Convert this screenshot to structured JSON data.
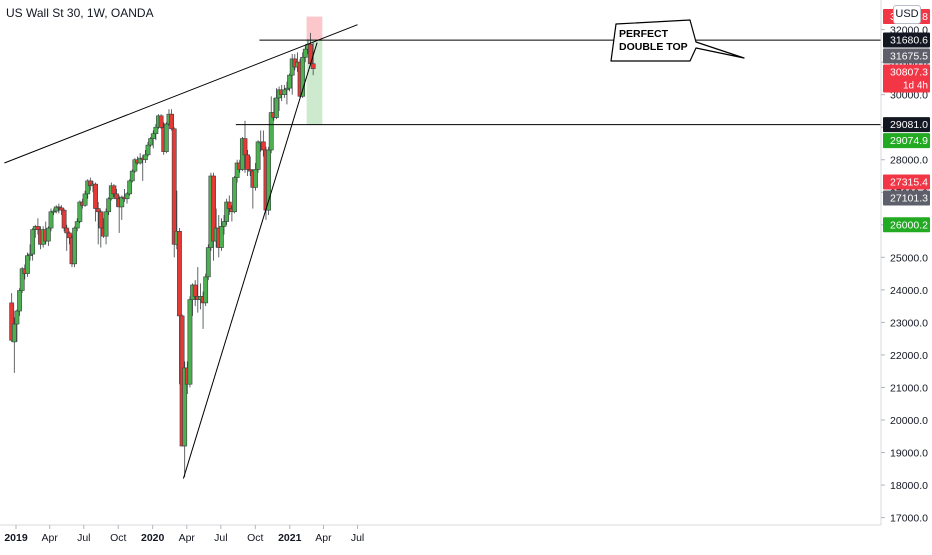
{
  "header": {
    "title": "US Wall St 30, 1W, OANDA"
  },
  "currency": "USD",
  "annotation": {
    "line1": "PERFECT",
    "line2": "DOUBLE TOP"
  },
  "chart_data": {
    "type": "candlestick",
    "title": "US Wall St 30, 1W, OANDA",
    "ylim": [
      17000,
      32750
    ],
    "y_ticks": [
      17000,
      18000,
      19000,
      20000,
      21000,
      22000,
      23000,
      24000,
      25000,
      26000,
      27000,
      28000,
      29000,
      30000,
      31000,
      32000
    ],
    "y_tick_labels": [
      "17000.0",
      "18000.0",
      "19000.0",
      "20000.0",
      "21000.0",
      "22000.0",
      "23000.0",
      "24000.0",
      "25000.0",
      "26000.0",
      "27000.0",
      "28000.0",
      "29000.0",
      "30000.0",
      "31000.0",
      "32000.0"
    ],
    "x_ticks": [
      "2019",
      "Apr",
      "Jul",
      "Oct",
      "2020",
      "Apr",
      "Jul",
      "Oct",
      "2021",
      "Apr",
      "Jul"
    ],
    "x_tick_bold": [
      true,
      false,
      false,
      false,
      true,
      false,
      false,
      false,
      true,
      false,
      false
    ],
    "x_range": [
      "2018-12",
      "2021-07"
    ],
    "colors": {
      "up": "#4caf50",
      "down": "#e53935",
      "line": "#000000"
    },
    "price_labels": [
      {
        "text": "32400.8",
        "value": 32400.8,
        "bg": "#f23645",
        "fg": "#ffffff"
      },
      {
        "text": "31680.6",
        "value": 31680.6,
        "bg": "#131722",
        "fg": "#ffffff"
      },
      {
        "text": "31675.5",
        "value": 31675.5,
        "bg": "#5d606b",
        "fg": "#ffffff"
      },
      {
        "text": "30807.3",
        "sub": "1d 4h",
        "value": 30807.3,
        "bg": "#f23645",
        "fg": "#ffffff"
      },
      {
        "text": "29081.0",
        "value": 29081.0,
        "bg": "#131722",
        "fg": "#ffffff"
      },
      {
        "text": "29074.9",
        "value": 29074.9,
        "bg": "#22ab22",
        "fg": "#ffffff"
      },
      {
        "text": "27315.4",
        "value": 27315.4,
        "bg": "#f23645",
        "fg": "#ffffff"
      },
      {
        "text": "27101.3",
        "value": 27101.3,
        "bg": "#5d606b",
        "fg": "#ffffff"
      },
      {
        "text": "26000.2",
        "value": 26000.2,
        "bg": "#22ab22",
        "fg": "#ffffff"
      }
    ],
    "horizontal_levels": [
      31675.5,
      29081.0
    ],
    "position_box": {
      "entry": 31675.5,
      "stop": 32400.8,
      "target": 29081.0
    },
    "trendlines": [
      {
        "name": "upper-resistance",
        "from": [
          "2018-12",
          27900
        ],
        "to": [
          "2021-07",
          32150
        ]
      },
      {
        "name": "rising-support",
        "from": [
          "2020-03-23",
          18200
        ],
        "to": [
          "2021-03-15",
          31600
        ]
      }
    ],
    "candles": [
      {
        "d": "2018-12-17",
        "o": 23600,
        "h": 23900,
        "l": 22400,
        "c": 22450
      },
      {
        "d": "2018-12-24",
        "o": 22400,
        "h": 23150,
        "l": 21450,
        "c": 22950
      },
      {
        "d": "2018-12-31",
        "o": 22950,
        "h": 23400,
        "l": 22400,
        "c": 23350
      },
      {
        "d": "2019-01-07",
        "o": 23350,
        "h": 24050,
        "l": 23200,
        "c": 23980
      },
      {
        "d": "2019-01-14",
        "o": 23980,
        "h": 24700,
        "l": 23900,
        "c": 24650
      },
      {
        "d": "2019-01-21",
        "o": 24650,
        "h": 24780,
        "l": 24320,
        "c": 24500
      },
      {
        "d": "2019-01-28",
        "o": 24500,
        "h": 25150,
        "l": 24400,
        "c": 25050
      },
      {
        "d": "2019-02-04",
        "o": 25050,
        "h": 25400,
        "l": 24900,
        "c": 25100
      },
      {
        "d": "2019-02-11",
        "o": 25100,
        "h": 25900,
        "l": 24900,
        "c": 25850
      },
      {
        "d": "2019-02-18",
        "o": 25850,
        "h": 26000,
        "l": 25600,
        "c": 25950
      },
      {
        "d": "2019-02-25",
        "o": 25950,
        "h": 26200,
        "l": 25700,
        "c": 25850
      },
      {
        "d": "2019-03-04",
        "o": 25850,
        "h": 25950,
        "l": 25250,
        "c": 25400
      },
      {
        "d": "2019-03-11",
        "o": 25400,
        "h": 25950,
        "l": 25300,
        "c": 25850
      },
      {
        "d": "2019-03-18",
        "o": 25850,
        "h": 26100,
        "l": 25400,
        "c": 25500
      },
      {
        "d": "2019-03-25",
        "o": 25500,
        "h": 25950,
        "l": 25350,
        "c": 25900
      },
      {
        "d": "2019-04-01",
        "o": 25900,
        "h": 26500,
        "l": 25800,
        "c": 26400
      },
      {
        "d": "2019-04-08",
        "o": 26400,
        "h": 26500,
        "l": 26300,
        "c": 26420
      },
      {
        "d": "2019-04-15",
        "o": 26420,
        "h": 26600,
        "l": 26350,
        "c": 26550
      },
      {
        "d": "2019-04-22",
        "o": 26550,
        "h": 26650,
        "l": 26350,
        "c": 26520
      },
      {
        "d": "2019-04-29",
        "o": 26520,
        "h": 26600,
        "l": 26300,
        "c": 26450
      },
      {
        "d": "2019-05-06",
        "o": 26450,
        "h": 26500,
        "l": 25800,
        "c": 25900
      },
      {
        "d": "2019-05-13",
        "o": 25900,
        "h": 26000,
        "l": 25200,
        "c": 25750
      },
      {
        "d": "2019-05-20",
        "o": 25750,
        "h": 25800,
        "l": 25400,
        "c": 25600
      },
      {
        "d": "2019-05-27",
        "o": 25600,
        "h": 25700,
        "l": 24700,
        "c": 24800
      },
      {
        "d": "2019-06-03",
        "o": 24800,
        "h": 25950,
        "l": 24700,
        "c": 25900
      },
      {
        "d": "2019-06-10",
        "o": 25900,
        "h": 26200,
        "l": 25800,
        "c": 26100
      },
      {
        "d": "2019-06-17",
        "o": 26100,
        "h": 26750,
        "l": 26050,
        "c": 26700
      },
      {
        "d": "2019-06-24",
        "o": 26700,
        "h": 26800,
        "l": 26500,
        "c": 26600
      },
      {
        "d": "2019-07-01",
        "o": 26600,
        "h": 27050,
        "l": 26550,
        "c": 26950
      },
      {
        "d": "2019-07-08",
        "o": 26950,
        "h": 27400,
        "l": 26800,
        "c": 27350
      },
      {
        "d": "2019-07-15",
        "o": 27350,
        "h": 27450,
        "l": 27050,
        "c": 27200
      },
      {
        "d": "2019-07-22",
        "o": 27200,
        "h": 27350,
        "l": 27000,
        "c": 27250
      },
      {
        "d": "2019-07-29",
        "o": 27250,
        "h": 27300,
        "l": 26100,
        "c": 26500
      },
      {
        "d": "2019-08-05",
        "o": 26500,
        "h": 26700,
        "l": 25400,
        "c": 26400
      },
      {
        "d": "2019-08-12",
        "o": 26400,
        "h": 26450,
        "l": 25300,
        "c": 25900
      },
      {
        "d": "2019-08-19",
        "o": 25900,
        "h": 26200,
        "l": 25600,
        "c": 25650
      },
      {
        "d": "2019-08-26",
        "o": 25650,
        "h": 26500,
        "l": 25400,
        "c": 26400
      },
      {
        "d": "2019-09-02",
        "o": 26400,
        "h": 26850,
        "l": 26300,
        "c": 26800
      },
      {
        "d": "2019-09-09",
        "o": 26800,
        "h": 27300,
        "l": 26750,
        "c": 27200
      },
      {
        "d": "2019-09-16",
        "o": 27200,
        "h": 27250,
        "l": 26850,
        "c": 26950
      },
      {
        "d": "2019-09-23",
        "o": 26950,
        "h": 27100,
        "l": 26550,
        "c": 26800
      },
      {
        "d": "2019-09-30",
        "o": 26800,
        "h": 26900,
        "l": 25750,
        "c": 26550
      },
      {
        "d": "2019-10-07",
        "o": 26550,
        "h": 26900,
        "l": 26150,
        "c": 26850
      },
      {
        "d": "2019-10-14",
        "o": 26850,
        "h": 27100,
        "l": 26700,
        "c": 26800
      },
      {
        "d": "2019-10-21",
        "o": 26800,
        "h": 27000,
        "l": 26650,
        "c": 26950
      },
      {
        "d": "2019-10-28",
        "o": 26950,
        "h": 27400,
        "l": 26900,
        "c": 27350
      },
      {
        "d": "2019-11-04",
        "o": 27350,
        "h": 27700,
        "l": 27300,
        "c": 27650
      },
      {
        "d": "2019-11-11",
        "o": 27650,
        "h": 28050,
        "l": 27600,
        "c": 28000
      },
      {
        "d": "2019-11-18",
        "o": 28000,
        "h": 28100,
        "l": 27850,
        "c": 27900
      },
      {
        "d": "2019-11-25",
        "o": 27900,
        "h": 28200,
        "l": 27850,
        "c": 28050
      },
      {
        "d": "2019-12-02",
        "o": 28050,
        "h": 28150,
        "l": 27350,
        "c": 28000
      },
      {
        "d": "2019-12-09",
        "o": 28000,
        "h": 28300,
        "l": 27900,
        "c": 28150
      },
      {
        "d": "2019-12-16",
        "o": 28150,
        "h": 28550,
        "l": 28100,
        "c": 28450
      },
      {
        "d": "2019-12-23",
        "o": 28450,
        "h": 28700,
        "l": 28400,
        "c": 28650
      },
      {
        "d": "2019-12-30",
        "o": 28650,
        "h": 28900,
        "l": 28350,
        "c": 28800
      },
      {
        "d": "2020-01-06",
        "o": 28800,
        "h": 29100,
        "l": 28600,
        "c": 29000
      },
      {
        "d": "2020-01-13",
        "o": 29000,
        "h": 29400,
        "l": 28950,
        "c": 29350
      },
      {
        "d": "2020-01-20",
        "o": 29350,
        "h": 29400,
        "l": 28950,
        "c": 28990
      },
      {
        "d": "2020-01-27",
        "o": 28990,
        "h": 29150,
        "l": 28150,
        "c": 28250
      },
      {
        "d": "2020-02-03",
        "o": 28250,
        "h": 29150,
        "l": 28200,
        "c": 29100
      },
      {
        "d": "2020-02-10",
        "o": 29100,
        "h": 29550,
        "l": 29050,
        "c": 29400
      },
      {
        "d": "2020-02-17",
        "o": 29400,
        "h": 29550,
        "l": 28900,
        "c": 28950
      },
      {
        "d": "2020-02-24",
        "o": 28950,
        "h": 29000,
        "l": 25000,
        "c": 25400
      },
      {
        "d": "2020-03-02",
        "o": 25400,
        "h": 27050,
        "l": 25250,
        "c": 25800
      },
      {
        "d": "2020-03-09",
        "o": 25800,
        "h": 25900,
        "l": 21100,
        "c": 23200
      },
      {
        "d": "2020-03-16",
        "o": 23200,
        "h": 23250,
        "l": 19300,
        "c": 19200
      },
      {
        "d": "2020-03-23",
        "o": 19200,
        "h": 21800,
        "l": 18250,
        "c": 21600
      },
      {
        "d": "2020-03-30",
        "o": 21600,
        "h": 21800,
        "l": 20800,
        "c": 21100
      },
      {
        "d": "2020-04-06",
        "o": 21100,
        "h": 23800,
        "l": 21000,
        "c": 23700
      },
      {
        "d": "2020-04-13",
        "o": 23700,
        "h": 24200,
        "l": 23200,
        "c": 24150
      },
      {
        "d": "2020-04-20",
        "o": 24150,
        "h": 24300,
        "l": 23500,
        "c": 23800
      },
      {
        "d": "2020-04-27",
        "o": 23800,
        "h": 24700,
        "l": 23300,
        "c": 23700
      },
      {
        "d": "2020-05-04",
        "o": 23700,
        "h": 24200,
        "l": 23400,
        "c": 23800
      },
      {
        "d": "2020-05-11",
        "o": 23800,
        "h": 23950,
        "l": 22800,
        "c": 23600
      },
      {
        "d": "2020-05-18",
        "o": 23600,
        "h": 24500,
        "l": 23500,
        "c": 24400
      },
      {
        "d": "2020-05-25",
        "o": 24400,
        "h": 25400,
        "l": 24300,
        "c": 25300
      },
      {
        "d": "2020-06-01",
        "o": 25300,
        "h": 27600,
        "l": 25200,
        "c": 27500
      },
      {
        "d": "2020-06-08",
        "o": 27500,
        "h": 27600,
        "l": 24900,
        "c": 25500
      },
      {
        "d": "2020-06-15",
        "o": 25500,
        "h": 26500,
        "l": 25300,
        "c": 25900
      },
      {
        "d": "2020-06-22",
        "o": 25900,
        "h": 26300,
        "l": 25000,
        "c": 25300
      },
      {
        "d": "2020-06-29",
        "o": 25300,
        "h": 26200,
        "l": 25200,
        "c": 25950
      },
      {
        "d": "2020-07-06",
        "o": 25950,
        "h": 26300,
        "l": 25700,
        "c": 26100
      },
      {
        "d": "2020-07-13",
        "o": 26100,
        "h": 26800,
        "l": 26000,
        "c": 26700
      },
      {
        "d": "2020-07-20",
        "o": 26700,
        "h": 26900,
        "l": 26300,
        "c": 26500
      },
      {
        "d": "2020-07-27",
        "o": 26500,
        "h": 26600,
        "l": 26100,
        "c": 26400
      },
      {
        "d": "2020-08-03",
        "o": 26400,
        "h": 27500,
        "l": 26350,
        "c": 27450
      },
      {
        "d": "2020-08-10",
        "o": 27450,
        "h": 28000,
        "l": 27300,
        "c": 27900
      },
      {
        "d": "2020-08-17",
        "o": 27900,
        "h": 28000,
        "l": 27600,
        "c": 27700
      },
      {
        "d": "2020-08-24",
        "o": 27700,
        "h": 28700,
        "l": 27650,
        "c": 28650
      },
      {
        "d": "2020-08-31",
        "o": 28650,
        "h": 29200,
        "l": 27600,
        "c": 28150
      },
      {
        "d": "2020-09-07",
        "o": 28150,
        "h": 28300,
        "l": 27500,
        "c": 27700
      },
      {
        "d": "2020-09-14",
        "o": 27700,
        "h": 28100,
        "l": 27500,
        "c": 27650
      },
      {
        "d": "2020-09-21",
        "o": 27650,
        "h": 27700,
        "l": 26500,
        "c": 27150
      },
      {
        "d": "2020-09-28",
        "o": 27150,
        "h": 27900,
        "l": 27050,
        "c": 27700
      },
      {
        "d": "2020-10-05",
        "o": 27700,
        "h": 28600,
        "l": 27600,
        "c": 28550
      },
      {
        "d": "2020-10-12",
        "o": 28550,
        "h": 28900,
        "l": 28250,
        "c": 28550
      },
      {
        "d": "2020-10-19",
        "o": 28550,
        "h": 28900,
        "l": 28100,
        "c": 28300
      },
      {
        "d": "2020-10-26",
        "o": 28300,
        "h": 28400,
        "l": 26150,
        "c": 26450
      },
      {
        "d": "2020-11-02",
        "o": 26450,
        "h": 28400,
        "l": 26300,
        "c": 28300
      },
      {
        "d": "2020-11-09",
        "o": 28300,
        "h": 29950,
        "l": 28200,
        "c": 29450
      },
      {
        "d": "2020-11-16",
        "o": 29450,
        "h": 29900,
        "l": 29200,
        "c": 29300
      },
      {
        "d": "2020-11-23",
        "o": 29300,
        "h": 30200,
        "l": 29250,
        "c": 29900
      },
      {
        "d": "2020-11-30",
        "o": 29900,
        "h": 30250,
        "l": 29500,
        "c": 30150
      },
      {
        "d": "2020-12-07",
        "o": 30150,
        "h": 30300,
        "l": 29800,
        "c": 30000
      },
      {
        "d": "2020-12-14",
        "o": 30000,
        "h": 30300,
        "l": 29900,
        "c": 30150
      },
      {
        "d": "2020-12-21",
        "o": 30150,
        "h": 30400,
        "l": 29700,
        "c": 30200
      },
      {
        "d": "2020-12-28",
        "o": 30200,
        "h": 30650,
        "l": 30100,
        "c": 30600
      },
      {
        "d": "2021-01-04",
        "o": 30600,
        "h": 31250,
        "l": 30000,
        "c": 31100
      },
      {
        "d": "2021-01-11",
        "o": 31100,
        "h": 31250,
        "l": 30750,
        "c": 30850
      },
      {
        "d": "2021-01-18",
        "o": 30850,
        "h": 31300,
        "l": 30700,
        "c": 31000
      },
      {
        "d": "2021-01-25",
        "o": 31000,
        "h": 31100,
        "l": 29900,
        "c": 29950
      },
      {
        "d": "2021-02-01",
        "o": 29950,
        "h": 31300,
        "l": 29900,
        "c": 31150
      },
      {
        "d": "2021-02-08",
        "o": 31150,
        "h": 31500,
        "l": 31000,
        "c": 31400
      },
      {
        "d": "2021-02-15",
        "o": 31400,
        "h": 31700,
        "l": 31250,
        "c": 31550
      },
      {
        "d": "2021-02-22",
        "o": 31550,
        "h": 31900,
        "l": 30900,
        "c": 30950
      },
      {
        "d": "2021-03-01",
        "o": 30950,
        "h": 31600,
        "l": 30600,
        "c": 30800
      }
    ]
  }
}
